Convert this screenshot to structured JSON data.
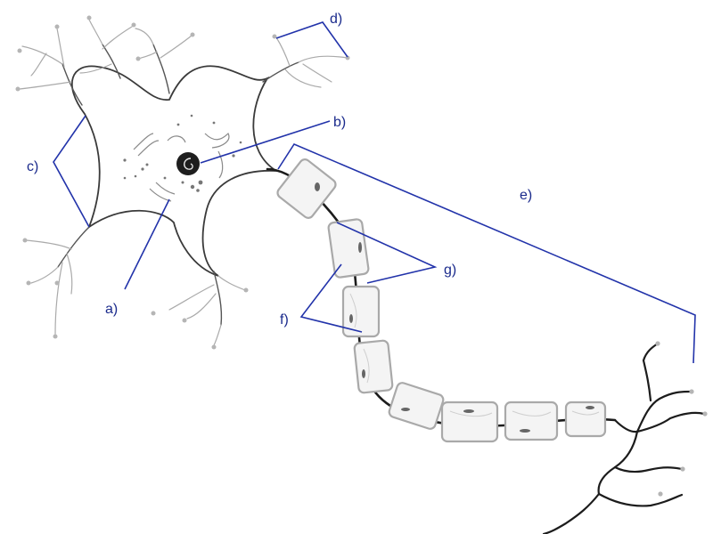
{
  "diagram": {
    "labels": {
      "a": "a)",
      "b": "b)",
      "c": "c)",
      "d": "d)",
      "e": "e)",
      "f": "f)",
      "g": "g)"
    }
  }
}
